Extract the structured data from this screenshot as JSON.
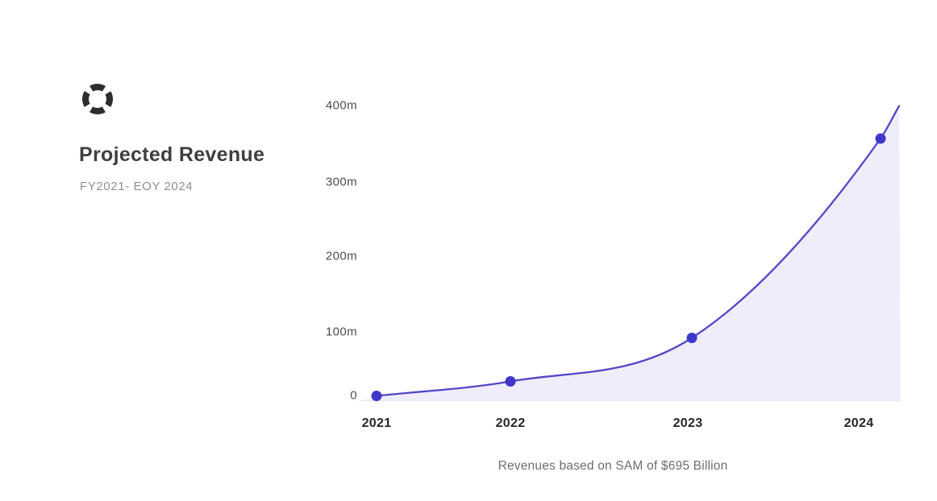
{
  "page": {
    "background": "#ffffff"
  },
  "brand": {
    "logo_icon": "segmented-circle-logo"
  },
  "header": {
    "title": "Projected Revenue",
    "subtitle": "FY2021- EOY 2024"
  },
  "chart": {
    "y_ticks": [
      "400m",
      "300m",
      "200m",
      "100m",
      "0"
    ],
    "x_ticks": [
      "2021",
      "2022",
      "2023",
      "2024"
    ],
    "caption": "Revenues based on SAM of $695 Billion",
    "colors": {
      "line": "#5148c6",
      "dot": "#4038cd",
      "fill": "#f0edfa",
      "baseline": "#e9e7f3",
      "title": "#3f3f3f",
      "subtitle": "#8e8e8e",
      "y_tick": "#4d4d4d",
      "x_tick": "#262626",
      "caption": "#6d6d6d",
      "logo": "#2d2d2d"
    }
  },
  "chart_data": {
    "type": "area",
    "title": "Projected Revenue",
    "subtitle": "FY2021- EOY 2024",
    "x": [
      "2021",
      "2022",
      "2023",
      "2024"
    ],
    "series": [
      {
        "name": "Projected Revenue",
        "values_millions": [
          0,
          20,
          80,
          355
        ]
      }
    ],
    "unit": "millions USD",
    "ylim_millions": [
      0,
      400
    ],
    "y_tick_step_millions": 100,
    "grid": false,
    "legend": false,
    "annotation": "Revenues based on SAM of $695 Billion",
    "line_extends_past_last_point_to_millions": 400
  }
}
